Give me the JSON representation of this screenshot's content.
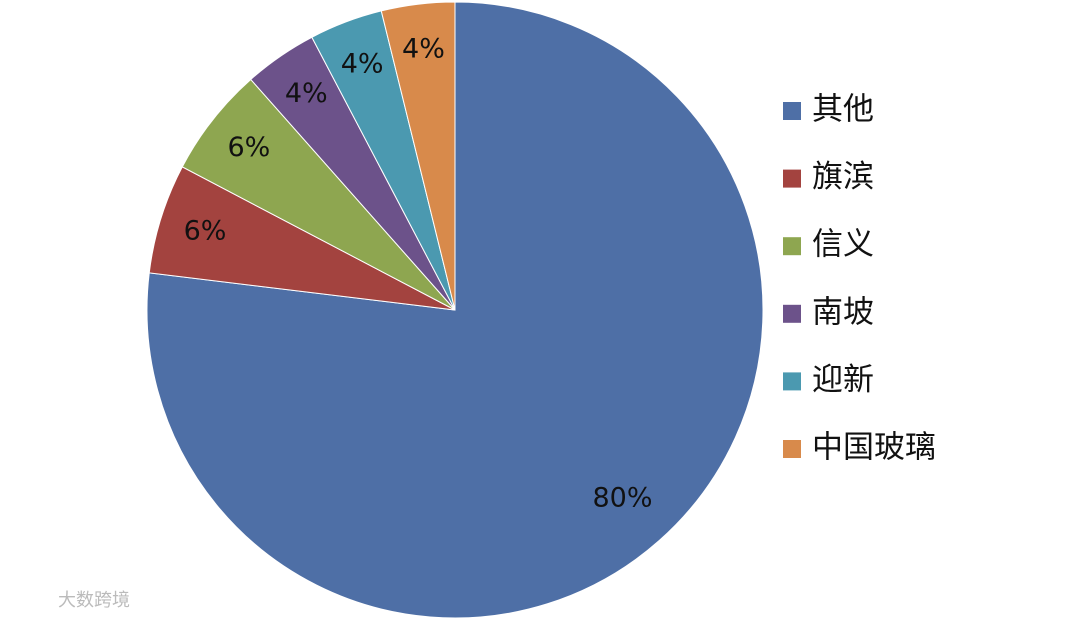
{
  "chart_data": {
    "type": "pie",
    "categories": [
      "其他",
      "旗滨",
      "信义",
      "南坡",
      "迎新",
      "中国玻璃"
    ],
    "values": [
      80,
      6,
      6,
      4,
      4,
      4
    ],
    "value_labels": [
      "80%",
      "6%",
      "6%",
      "4%",
      "4%",
      "4%"
    ],
    "colors": [
      "#4e6fa6",
      "#a3433f",
      "#8ea650",
      "#6c528a",
      "#4b99b0",
      "#d88a4b"
    ],
    "legend": "right",
    "watermark": "大数跨境"
  }
}
